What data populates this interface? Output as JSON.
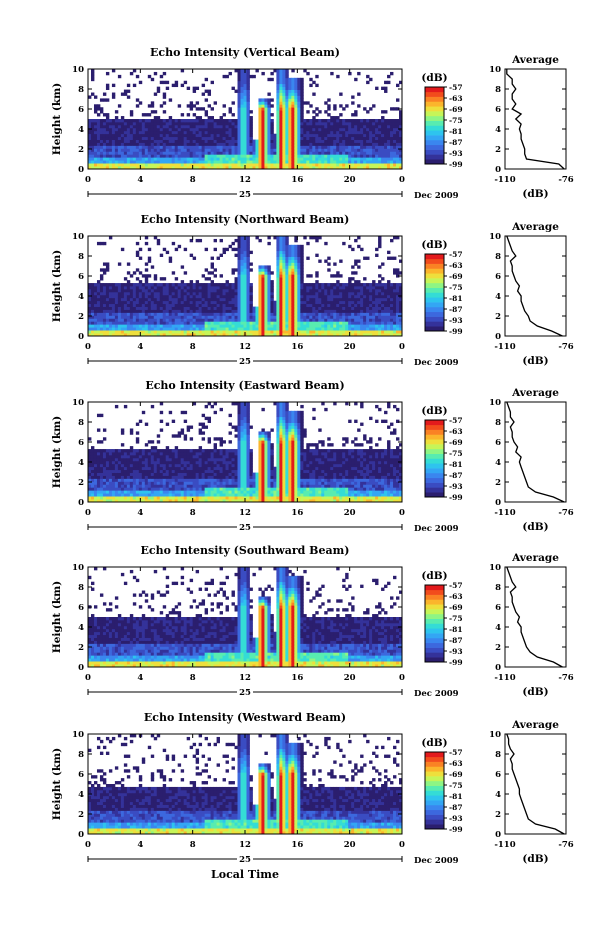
{
  "figure": {
    "xlabel": "Local Time",
    "date_label": "Dec 2009",
    "day_label": "25",
    "colorbar_unit": "(dB)",
    "avg_title": "Average",
    "avg_xlabel": "(dB)"
  },
  "colormap": [
    "#2b1e6e",
    "#34329a",
    "#3a4cc2",
    "#3c68de",
    "#3a86ef",
    "#33a6f4",
    "#2ec4ee",
    "#34dcd6",
    "#58ecb0",
    "#8ef584",
    "#c6f558",
    "#eedf3c",
    "#fbb52c",
    "#fa8224",
    "#f24c1c",
    "#e31a1c"
  ],
  "chart_data": [
    {
      "type": "heatmap",
      "title": "Echo Intensity (Vertical Beam)",
      "ylabel": "Height (km)",
      "xlabel": "Local Time",
      "xlim": [
        0,
        24
      ],
      "ylim": [
        0,
        10
      ],
      "xticks": [
        "0",
        "4",
        "8",
        "12",
        "16",
        "20",
        "0"
      ],
      "yticks": [
        "0",
        "2",
        "4",
        "6",
        "8",
        "10"
      ],
      "colorbar": {
        "label": "(dB)",
        "ticks": [
          "-57",
          "-63",
          "-69",
          "-75",
          "-81",
          "-87",
          "-93",
          "-99"
        ],
        "range": [
          -99,
          -57
        ]
      },
      "average_profile": {
        "title": "Average",
        "xlabel": "(dB)",
        "xlim": [
          -110,
          -76
        ],
        "xticks": [
          "-110",
          "-76"
        ],
        "ylim": [
          0,
          10
        ],
        "yticks": [
          "0",
          "2",
          "4",
          "6",
          "8",
          "10"
        ],
        "height": [
          0,
          0.5,
          1,
          1.5,
          2,
          2.5,
          3,
          3.5,
          4,
          4.5,
          5,
          5.5,
          6,
          6.5,
          7,
          7.5,
          8,
          8.5,
          9,
          9.5,
          10
        ],
        "db": [
          -77,
          -80,
          -98,
          -99,
          -99,
          -100,
          -101,
          -101,
          -102,
          -101,
          -104,
          -101,
          -106,
          -104,
          -106,
          -106,
          -104,
          -106,
          -106,
          -109,
          -109
        ]
      }
    },
    {
      "type": "heatmap",
      "title": "Echo Intensity (Northward Beam)",
      "ylabel": "Height (km)",
      "xlabel": "Local Time",
      "xlim": [
        0,
        24
      ],
      "ylim": [
        0,
        10
      ],
      "xticks": [
        "0",
        "4",
        "8",
        "12",
        "16",
        "20",
        "0"
      ],
      "yticks": [
        "0",
        "2",
        "4",
        "6",
        "8",
        "10"
      ],
      "colorbar": {
        "label": "(dB)",
        "ticks": [
          "-57",
          "-63",
          "-69",
          "-75",
          "-81",
          "-87",
          "-93",
          "-99"
        ],
        "range": [
          -99,
          -57
        ]
      },
      "average_profile": {
        "title": "Average",
        "xlabel": "(dB)",
        "xlim": [
          -110,
          -76
        ],
        "xticks": [
          "-110",
          "-76"
        ],
        "ylim": [
          0,
          10
        ],
        "yticks": [
          "0",
          "2",
          "4",
          "6",
          "8",
          "10"
        ],
        "height": [
          0,
          0.5,
          1,
          1.5,
          2,
          2.5,
          3,
          3.5,
          4,
          4.5,
          5,
          5.5,
          6,
          6.5,
          7,
          7.5,
          8,
          8.5,
          9,
          9.5,
          10
        ],
        "db": [
          -78,
          -84,
          -92,
          -96,
          -97,
          -99,
          -100,
          -101,
          -101,
          -103,
          -102,
          -104,
          -105,
          -106,
          -106,
          -107,
          -104,
          -106,
          -107,
          -108,
          -109
        ]
      }
    },
    {
      "type": "heatmap",
      "title": "Echo Intensity (Eastward Beam)",
      "ylabel": "Height (km)",
      "xlabel": "Local Time",
      "xlim": [
        0,
        24
      ],
      "ylim": [
        0,
        10
      ],
      "xticks": [
        "0",
        "4",
        "8",
        "12",
        "16",
        "20",
        "0"
      ],
      "yticks": [
        "0",
        "2",
        "4",
        "6",
        "8",
        "10"
      ],
      "colorbar": {
        "label": "(dB)",
        "ticks": [
          "-57",
          "-63",
          "-69",
          "-75",
          "-81",
          "-87",
          "-93",
          "-99"
        ],
        "range": [
          -99,
          -57
        ]
      },
      "average_profile": {
        "title": "Average",
        "xlabel": "(dB)",
        "xlim": [
          -110,
          -76
        ],
        "xticks": [
          "-110",
          "-76"
        ],
        "ylim": [
          0,
          10
        ],
        "yticks": [
          "0",
          "2",
          "4",
          "6",
          "8",
          "10"
        ],
        "height": [
          0,
          0.5,
          1,
          1.5,
          2,
          2.5,
          3,
          3.5,
          4,
          4.5,
          5,
          5.5,
          6,
          6.5,
          7,
          7.5,
          8,
          8.5,
          9,
          9.5,
          10
        ],
        "db": [
          -77,
          -83,
          -93,
          -97,
          -98,
          -99,
          -100,
          -101,
          -102,
          -101,
          -104,
          -103,
          -105,
          -106,
          -106,
          -107,
          -105,
          -107,
          -107,
          -108,
          -109
        ]
      }
    },
    {
      "type": "heatmap",
      "title": "Echo Intensity (Southward Beam)",
      "ylabel": "Height (km)",
      "xlabel": "Local Time",
      "xlim": [
        0,
        24
      ],
      "ylim": [
        0,
        10
      ],
      "xticks": [
        "0",
        "4",
        "8",
        "12",
        "16",
        "20",
        "0"
      ],
      "yticks": [
        "0",
        "2",
        "4",
        "6",
        "8",
        "10"
      ],
      "colorbar": {
        "label": "(dB)",
        "ticks": [
          "-57",
          "-63",
          "-69",
          "-75",
          "-81",
          "-87",
          "-93",
          "-99"
        ],
        "range": [
          -99,
          -57
        ]
      },
      "average_profile": {
        "title": "Average",
        "xlabel": "(dB)",
        "xlim": [
          -110,
          -76
        ],
        "xticks": [
          "-110",
          "-76"
        ],
        "ylim": [
          0,
          10
        ],
        "yticks": [
          "0",
          "2",
          "4",
          "6",
          "8",
          "10"
        ],
        "height": [
          0,
          0.5,
          1,
          1.5,
          2,
          2.5,
          3,
          3.5,
          4,
          4.5,
          5,
          5.5,
          6,
          6.5,
          7,
          7.5,
          8,
          8.5,
          9,
          9.5,
          10
        ],
        "db": [
          -78,
          -83,
          -92,
          -96,
          -98,
          -99,
          -100,
          -101,
          -101,
          -103,
          -102,
          -104,
          -105,
          -106,
          -106,
          -107,
          -104,
          -106,
          -107,
          -108,
          -109
        ]
      }
    },
    {
      "type": "heatmap",
      "title": "Echo Intensity (Westward Beam)",
      "ylabel": "Height (km)",
      "xlabel": "Local Time",
      "xlim": [
        0,
        24
      ],
      "ylim": [
        0,
        10
      ],
      "xticks": [
        "0",
        "4",
        "8",
        "12",
        "16",
        "20",
        "0"
      ],
      "yticks": [
        "0",
        "2",
        "4",
        "6",
        "8",
        "10"
      ],
      "colorbar": {
        "label": "(dB)",
        "ticks": [
          "-57",
          "-63",
          "-69",
          "-75",
          "-81",
          "-87",
          "-93",
          "-99"
        ],
        "range": [
          -99,
          -57
        ]
      },
      "average_profile": {
        "title": "Average",
        "xlabel": "(dB)",
        "xlim": [
          -110,
          -76
        ],
        "xticks": [
          "-110",
          "-76"
        ],
        "ylim": [
          0,
          10
        ],
        "yticks": [
          "0",
          "2",
          "4",
          "6",
          "8",
          "10"
        ],
        "height": [
          0,
          0.5,
          1,
          1.5,
          2,
          2.5,
          3,
          3.5,
          4,
          4.5,
          5,
          5.5,
          6,
          6.5,
          7,
          7.5,
          8,
          8.5,
          9,
          9.5,
          10
        ],
        "db": [
          -77,
          -82,
          -93,
          -97,
          -98,
          -99,
          -100,
          -101,
          -102,
          -102,
          -103,
          -104,
          -105,
          -106,
          -106,
          -107,
          -105,
          -107,
          -108,
          -108,
          -109
        ]
      }
    }
  ]
}
